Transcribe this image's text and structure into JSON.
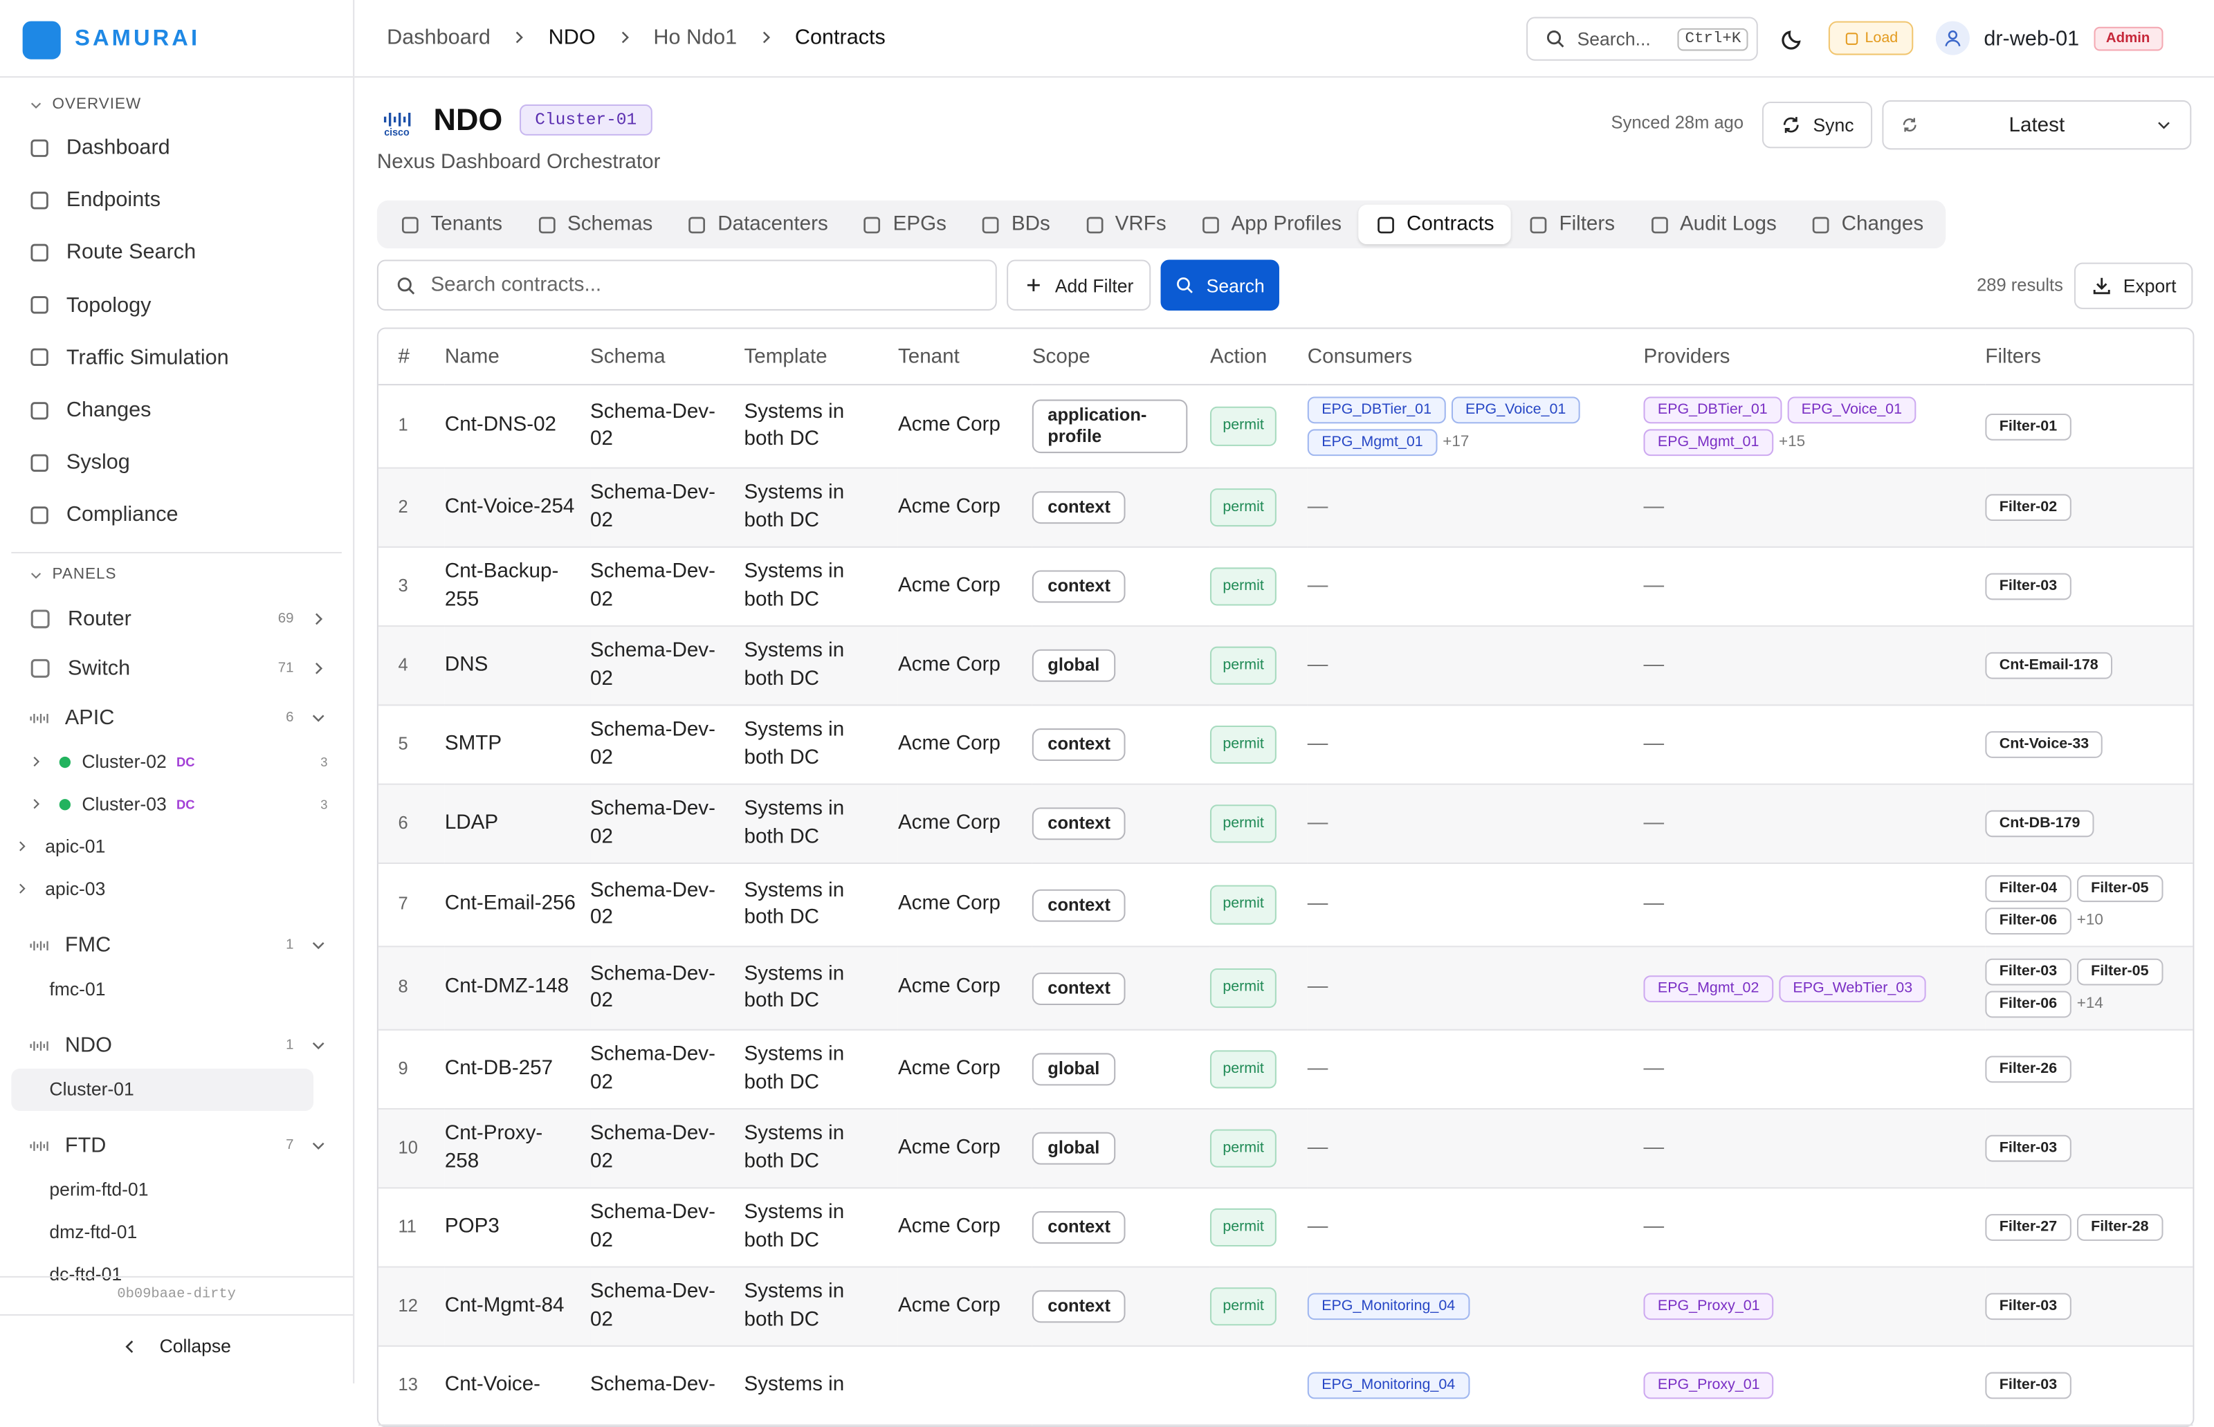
{
  "header": {
    "brand": "SAMURAI",
    "breadcrumb": [
      "Dashboard",
      "NDO",
      "Ho Ndo1",
      "Contracts"
    ],
    "search": "Search...",
    "shortcut": "Ctrl+K",
    "load": "Load",
    "user": "dr-web-01",
    "role": "Admin"
  },
  "sidebar": {
    "overview_label": "OVERVIEW",
    "overview": [
      "Dashboard",
      "Endpoints",
      "Route Search",
      "Topology",
      "Traffic Simulation",
      "Changes",
      "Syslog",
      "Compliance"
    ],
    "panels_label": "PANELS",
    "panels": [
      {
        "label": "Router",
        "count": 69,
        "expanded": false,
        "children": []
      },
      {
        "label": "Switch",
        "count": 71,
        "expanded": false,
        "children": []
      },
      {
        "label": "APIC",
        "count": 6,
        "expanded": true,
        "children": [
          {
            "label": "Cluster-02",
            "tag": "DC",
            "count": 3,
            "kind": "cluster"
          },
          {
            "label": "Cluster-03",
            "tag": "DC",
            "count": 3,
            "kind": "cluster"
          },
          {
            "label": "apic-01",
            "kind": "device"
          },
          {
            "label": "apic-03",
            "kind": "device"
          }
        ]
      },
      {
        "label": "FMC",
        "count": 1,
        "expanded": true,
        "children": [
          {
            "label": "fmc-01",
            "kind": "leaf"
          }
        ]
      },
      {
        "label": "NDO",
        "count": 1,
        "expanded": true,
        "children": [
          {
            "label": "Cluster-01",
            "kind": "leaf",
            "active": true
          }
        ]
      },
      {
        "label": "FTD",
        "count": 7,
        "expanded": true,
        "children": [
          {
            "label": "perim-ftd-01",
            "kind": "leaf"
          },
          {
            "label": "dmz-ftd-01",
            "kind": "leaf"
          },
          {
            "label": "dc-ftd-01",
            "kind": "leaf"
          }
        ]
      }
    ],
    "version": "0b09baae-dirty",
    "collapse": "Collapse"
  },
  "page": {
    "logo": "cisco",
    "title": "NDO",
    "badge": "Cluster-01",
    "subtitle": "Nexus Dashboard Orchestrator",
    "synced": "Synced 28m ago",
    "sync": "Sync",
    "version_select": "Latest"
  },
  "tabs": {
    "items": [
      "Tenants",
      "Schemas",
      "Datacenters",
      "EPGs",
      "BDs",
      "VRFs",
      "App Profiles",
      "Contracts",
      "Filters",
      "Audit Logs",
      "Changes"
    ],
    "active": 7
  },
  "toolbar": {
    "search_placeholder": "Search contracts...",
    "add_filter": "Add Filter",
    "search": "Search",
    "results": "289 results",
    "export": "Export"
  },
  "table": {
    "headers": [
      "#",
      "Name",
      "Schema",
      "Template",
      "Tenant",
      "Scope",
      "Action",
      "Consumers",
      "Providers",
      "Filters"
    ],
    "empty": "—",
    "rows": [
      {
        "n": 1,
        "name": "Cnt-DNS-02",
        "schema": "Schema-Dev-02",
        "template": "Systems in both DC",
        "tenant": "Acme Corp",
        "scope": "application-profile",
        "action": "permit",
        "consumers": [
          "EPG_DBTier_01",
          "EPG_Voice_01",
          "EPG_Mgmt_01"
        ],
        "consumers_more": "+17",
        "providers": [
          "EPG_DBTier_01",
          "EPG_Voice_01",
          "EPG_Mgmt_01"
        ],
        "providers_more": "+15",
        "filters": [
          "Filter-01"
        ]
      },
      {
        "n": 2,
        "name": "Cnt-Voice-254",
        "schema": "Schema-Dev-02",
        "template": "Systems in both DC",
        "tenant": "Acme Corp",
        "scope": "context",
        "action": "permit",
        "consumers": [],
        "providers": [],
        "filters": [
          "Filter-02"
        ]
      },
      {
        "n": 3,
        "name": "Cnt-Backup-255",
        "schema": "Schema-Dev-02",
        "template": "Systems in both DC",
        "tenant": "Acme Corp",
        "scope": "context",
        "action": "permit",
        "consumers": [],
        "providers": [],
        "filters": [
          "Filter-03"
        ]
      },
      {
        "n": 4,
        "name": "DNS",
        "schema": "Schema-Dev-02",
        "template": "Systems in both DC",
        "tenant": "Acme Corp",
        "scope": "global",
        "action": "permit",
        "consumers": [],
        "providers": [],
        "filters": [
          "Cnt-Email-178"
        ]
      },
      {
        "n": 5,
        "name": "SMTP",
        "schema": "Schema-Dev-02",
        "template": "Systems in both DC",
        "tenant": "Acme Corp",
        "scope": "context",
        "action": "permit",
        "consumers": [],
        "providers": [],
        "filters": [
          "Cnt-Voice-33"
        ]
      },
      {
        "n": 6,
        "name": "LDAP",
        "schema": "Schema-Dev-02",
        "template": "Systems in both DC",
        "tenant": "Acme Corp",
        "scope": "context",
        "action": "permit",
        "consumers": [],
        "providers": [],
        "filters": [
          "Cnt-DB-179"
        ]
      },
      {
        "n": 7,
        "name": "Cnt-Email-256",
        "schema": "Schema-Dev-02",
        "template": "Systems in both DC",
        "tenant": "Acme Corp",
        "scope": "context",
        "action": "permit",
        "consumers": [],
        "providers": [],
        "filters": [
          "Filter-04",
          "Filter-05",
          "Filter-06"
        ],
        "filters_more": "+10"
      },
      {
        "n": 8,
        "name": "Cnt-DMZ-148",
        "schema": "Schema-Dev-02",
        "template": "Systems in both DC",
        "tenant": "Acme Corp",
        "scope": "context",
        "action": "permit",
        "consumers": [],
        "providers": [
          "EPG_Mgmt_02",
          "EPG_WebTier_03"
        ],
        "filters": [
          "Filter-03",
          "Filter-05",
          "Filter-06"
        ],
        "filters_more": "+14"
      },
      {
        "n": 9,
        "name": "Cnt-DB-257",
        "schema": "Schema-Dev-02",
        "template": "Systems in both DC",
        "tenant": "Acme Corp",
        "scope": "global",
        "action": "permit",
        "consumers": [],
        "providers": [],
        "filters": [
          "Filter-26"
        ]
      },
      {
        "n": 10,
        "name": "Cnt-Proxy-258",
        "schema": "Schema-Dev-02",
        "template": "Systems in both DC",
        "tenant": "Acme Corp",
        "scope": "global",
        "action": "permit",
        "consumers": [],
        "providers": [],
        "filters": [
          "Filter-03"
        ]
      },
      {
        "n": 11,
        "name": "POP3",
        "schema": "Schema-Dev-02",
        "template": "Systems in both DC",
        "tenant": "Acme Corp",
        "scope": "context",
        "action": "permit",
        "consumers": [],
        "providers": [],
        "filters": [
          "Filter-27",
          "Filter-28"
        ]
      },
      {
        "n": 12,
        "name": "Cnt-Mgmt-84",
        "schema": "Schema-Dev-02",
        "template": "Systems in both DC",
        "tenant": "Acme Corp",
        "scope": "context",
        "action": "permit",
        "consumers": [
          "EPG_Monitoring_04"
        ],
        "providers": [
          "EPG_Proxy_01"
        ],
        "filters": [
          "Filter-03"
        ]
      },
      {
        "n": 13,
        "name": "Cnt-Voice-",
        "schema": "Schema-Dev-",
        "template": "Systems in",
        "tenant": "",
        "scope": "",
        "action": "",
        "consumers": [
          "EPG_Monitoring_04"
        ],
        "providers": [
          "EPG_Proxy_01"
        ],
        "filters": [
          "Filter-03"
        ]
      }
    ]
  }
}
